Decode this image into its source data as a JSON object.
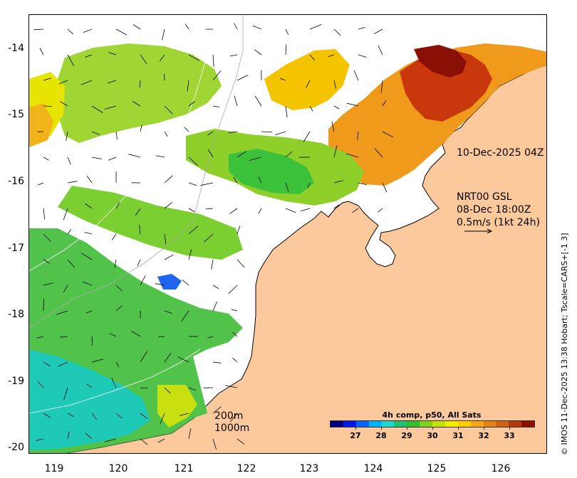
{
  "map": {
    "y_labels": [
      "-14",
      "-15",
      "-16",
      "-17",
      "-18",
      "-19",
      "-20"
    ],
    "x_labels": [
      "119",
      "120",
      "121",
      "122",
      "123",
      "124",
      "125",
      "126"
    ],
    "timestamp": "10-Dec-2025 04Z",
    "product": {
      "line1": "NRT00 GSL",
      "line2": "08-Dec 18:00Z",
      "line3": "0.5m/s (1kt 24h)"
    },
    "isobath_200": "200m",
    "isobath_1000": "1000m",
    "credit": "© IMOS 11-Dec-2025 13:38 Hobart; Tscale=CARS+[-1 3]",
    "colors": {
      "land": "#fcc99c",
      "coast": "#000000",
      "isobath": "#aaaaaa"
    }
  },
  "colorbar": {
    "title": "4h comp, p50, All Sats",
    "labels": [
      "27",
      "28",
      "29",
      "30",
      "31",
      "32",
      "33"
    ],
    "range": [
      26,
      34
    ],
    "colors": [
      "#00007f",
      "#0019e6",
      "#0066ff",
      "#00b3ff",
      "#1fd6d2",
      "#24c270",
      "#2fbf2f",
      "#7fd11f",
      "#c5e00a",
      "#f2ee00",
      "#ffd000",
      "#f5a61c",
      "#e3841a",
      "#d06012",
      "#b3390c",
      "#8a0f05"
    ]
  }
}
